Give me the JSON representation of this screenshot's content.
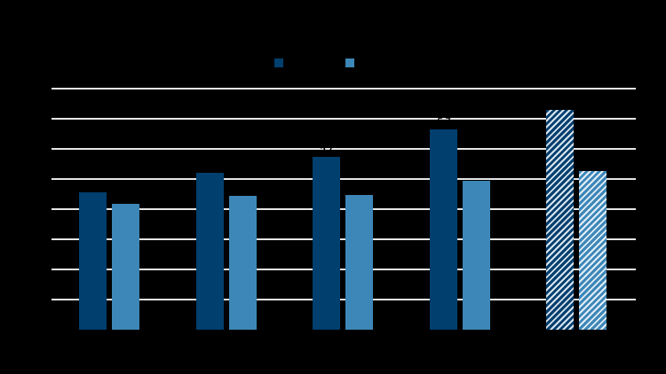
{
  "chart_data": {
    "type": "bar",
    "title": "",
    "xlabel": "",
    "ylabel": "",
    "note": "All text (title, legend labels, tick labels, data labels, category labels) renders black on a black background and is not legible; values estimated from bar heights relative to gridlines (each gridline = 1 unit).",
    "categories": [
      "",
      "",
      "",
      "",
      ""
    ],
    "series": [
      {
        "name": "",
        "color": "#003f6e",
        "values": [
          4.56,
          5.21,
          5.74,
          6.65,
          7.29
        ],
        "hatched": [
          false,
          false,
          false,
          false,
          true
        ]
      },
      {
        "name": "",
        "color": "#3d87b8",
        "values": [
          4.18,
          4.44,
          4.47,
          4.94,
          5.26
        ],
        "hatched": [
          false,
          false,
          false,
          false,
          true
        ]
      }
    ],
    "ylim": [
      0,
      8
    ],
    "gridlines": [
      1,
      2,
      3,
      4,
      5,
      6,
      7,
      8
    ],
    "grid": true,
    "legend_position": "top-center",
    "background": "#000000",
    "gridline_color": "#e6e6e6"
  },
  "legend": {
    "items": [
      {
        "label": "",
        "color": "#003f6e"
      },
      {
        "label": "",
        "color": "#3d87b8"
      }
    ]
  },
  "title": ""
}
